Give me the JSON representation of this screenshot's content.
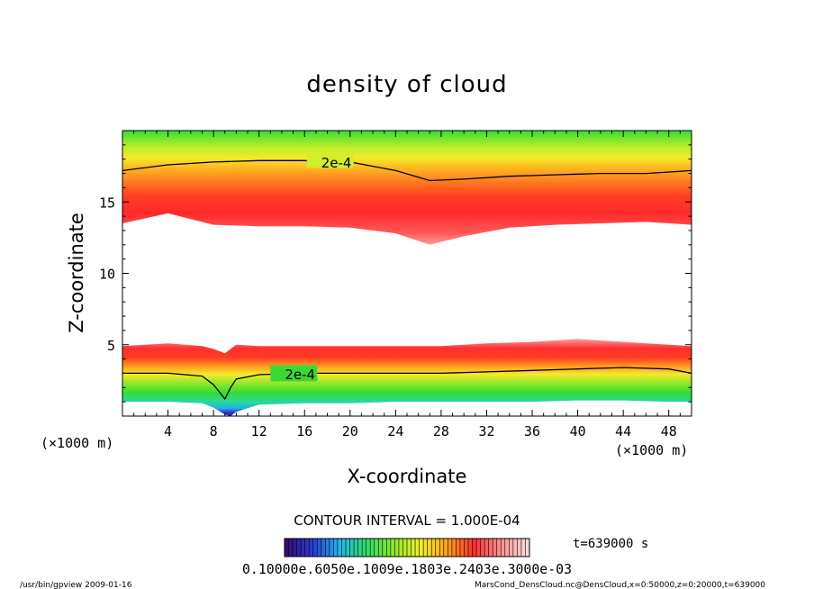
{
  "chart_data": {
    "type": "heatmap",
    "title": "density of cloud",
    "xlabel": "X-coordinate",
    "ylabel": "Z-coordinate",
    "x_unit": "(×1000 m)",
    "y_unit": "(×1000 m)",
    "xlim": [
      0,
      50
    ],
    "ylim": [
      0,
      20
    ],
    "x_ticks": [
      4,
      8,
      12,
      16,
      20,
      24,
      28,
      32,
      36,
      40,
      44,
      48
    ],
    "y_ticks": [
      5,
      10,
      15
    ],
    "contour_interval_text": "CONTOUR INTERVAL = 1.000E-04",
    "contour_label": "2e-4",
    "time_label": "t=639000 s",
    "colorbar_labels_text": "0.10000e.6050e.1009e.1803e.2403e.3000e-03",
    "colorbar_range": [
      6e-05,
      0.0003
    ],
    "colormap": [
      "#3a0a78",
      "#2b3cd8",
      "#22b8e8",
      "#2fdc6a",
      "#8fe82a",
      "#f2f02a",
      "#ffa020",
      "#ff3030",
      "#ff9090",
      "#ffd8d8"
    ],
    "upper_cloud": {
      "x": [
        0,
        4,
        8,
        12,
        16,
        20,
        24,
        27,
        30,
        34,
        38,
        42,
        46,
        50
      ],
      "base": [
        13.5,
        14.2,
        13.4,
        13.3,
        13.3,
        13.2,
        12.8,
        12.0,
        12.6,
        13.2,
        13.4,
        13.5,
        13.6,
        13.4
      ],
      "peak": [
        15.5,
        15.8,
        15.9,
        15.8,
        15.6,
        15.3,
        14.4,
        13.5,
        14.2,
        14.7,
        14.9,
        15.0,
        15.0,
        15.0
      ],
      "top_2e4": [
        17.2,
        17.6,
        17.8,
        17.9,
        17.9,
        17.8,
        17.2,
        16.5,
        16.6,
        16.8,
        16.9,
        17.0,
        17.0,
        17.2
      ]
    },
    "lower_cloud": {
      "x": [
        0,
        4,
        7,
        8,
        9,
        9.5,
        10,
        12,
        16,
        20,
        24,
        28,
        32,
        36,
        40,
        44,
        48,
        50
      ],
      "top": [
        4.9,
        5.1,
        4.9,
        4.7,
        4.4,
        4.7,
        5.0,
        4.9,
        4.9,
        4.9,
        4.9,
        4.9,
        5.1,
        5.2,
        5.4,
        5.2,
        5.0,
        4.9
      ],
      "contour_2e4": [
        3.0,
        3.0,
        2.8,
        2.2,
        1.2,
        2.0,
        2.6,
        2.9,
        3.0,
        3.0,
        3.0,
        3.0,
        3.1,
        3.2,
        3.3,
        3.4,
        3.3,
        3.0
      ],
      "base": [
        1.0,
        1.0,
        0.9,
        0.6,
        0.1,
        0.0,
        0.3,
        0.8,
        0.9,
        0.9,
        1.0,
        1.0,
        1.0,
        1.0,
        1.1,
        1.1,
        1.0,
        1.0
      ]
    }
  },
  "footer": {
    "left": "/usr/bin/gpview  2009-01-16",
    "right": "MarsCond_DensCloud.nc@DensCloud,x=0:50000,z=0:20000,t=639000"
  }
}
